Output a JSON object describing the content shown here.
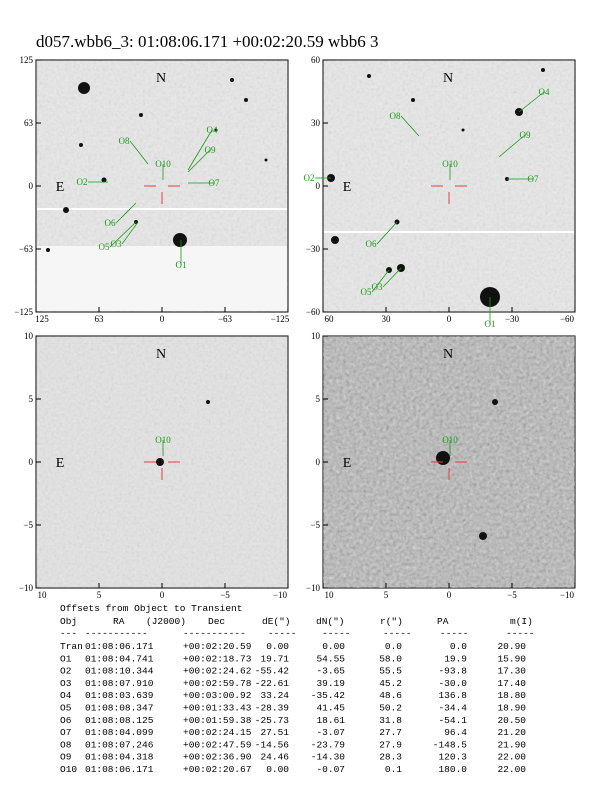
{
  "header": {
    "title": "d057.wbb6_3: 01:08:06.171 +00:02:20.59  wbb6 3"
  },
  "panels": [
    {
      "xticks": [
        "125",
        "63",
        "0",
        "−63",
        "−125"
      ],
      "yticks": [
        "125",
        "63",
        "0",
        "−63",
        "−125"
      ],
      "compass": [
        "N",
        "E"
      ],
      "objects": [
        "O1",
        "O2",
        "O3",
        "O4",
        "O5",
        "O6",
        "O7",
        "O8",
        "O9",
        "O10"
      ]
    },
    {
      "xticks": [
        "60",
        "30",
        "0",
        "−30",
        "−60"
      ],
      "yticks": [
        "60",
        "30",
        "0",
        "−30",
        "−60"
      ],
      "compass": [
        "N",
        "E"
      ],
      "objects": [
        "O1",
        "O2",
        "O3",
        "O4",
        "O5",
        "O6",
        "O7",
        "O8",
        "O9",
        "O10"
      ]
    },
    {
      "xticks": [
        "10",
        "5",
        "0",
        "−5",
        "−10"
      ],
      "yticks": [
        "10",
        "5",
        "0",
        "−5",
        "−10"
      ],
      "compass": [
        "N",
        "E"
      ],
      "objects": [
        "O10"
      ]
    },
    {
      "xticks": [
        "10",
        "5",
        "0",
        "−5",
        "−10"
      ],
      "yticks": [
        "10",
        "5",
        "0",
        "−5",
        "−10"
      ],
      "compass": [
        "N",
        "E"
      ],
      "objects": [
        "O10"
      ]
    }
  ],
  "table": {
    "title": "Offsets from Object to Transient",
    "headers": [
      "Obj",
      "RA",
      "(J2000)",
      "Dec",
      "dE(\")",
      "dN(\")",
      "r(\")",
      "PA",
      "m(I)"
    ],
    "separators": [
      "---",
      "-----------",
      "-----------",
      "-----",
      "-----",
      "-----",
      "-----",
      "-----"
    ],
    "rows": [
      [
        "Tran",
        "01:08:06.171",
        "+00:02:20.59",
        "0.00",
        "0.00",
        "0.0",
        "0.0",
        "20.90"
      ],
      [
        "O1",
        "01:08:04.741",
        "+00:02:18.73",
        "19.71",
        "54.55",
        "58.0",
        "19.9",
        "15.90"
      ],
      [
        "O2",
        "01:08:10.344",
        "+00:02:24.62",
        "-55.42",
        "-3.65",
        "55.5",
        "-93.8",
        "17.30"
      ],
      [
        "O3",
        "01:08:07.910",
        "+00:02:59.78",
        "-22.61",
        "39.19",
        "45.2",
        "-30.0",
        "17.40"
      ],
      [
        "O4",
        "01:08:03.639",
        "+00:03:00.92",
        "33.24",
        "-35.42",
        "48.6",
        "136.8",
        "18.80"
      ],
      [
        "O5",
        "01:08:08.347",
        "+00:01:33.43",
        "-28.39",
        "41.45",
        "50.2",
        "-34.4",
        "18.90"
      ],
      [
        "O6",
        "01:08:08.125",
        "+00:01:59.38",
        "-25.73",
        "18.61",
        "31.8",
        "-54.1",
        "20.50"
      ],
      [
        "O7",
        "01:08:04.099",
        "+00:02:24.15",
        "27.51",
        "-3.07",
        "27.7",
        "96.4",
        "21.20"
      ],
      [
        "O8",
        "01:08:07.246",
        "+00:02:47.59",
        "-14.56",
        "-23.79",
        "27.9",
        "-148.5",
        "21.90"
      ],
      [
        "O9",
        "01:08:04.318",
        "+00:02:36.90",
        "24.46",
        "-14.30",
        "28.3",
        "120.3",
        "22.00"
      ],
      [
        "O10",
        "01:08:06.171",
        "+00:02:20.67",
        "0.00",
        "-0.07",
        "0.1",
        "180.0",
        "22.00"
      ]
    ]
  }
}
